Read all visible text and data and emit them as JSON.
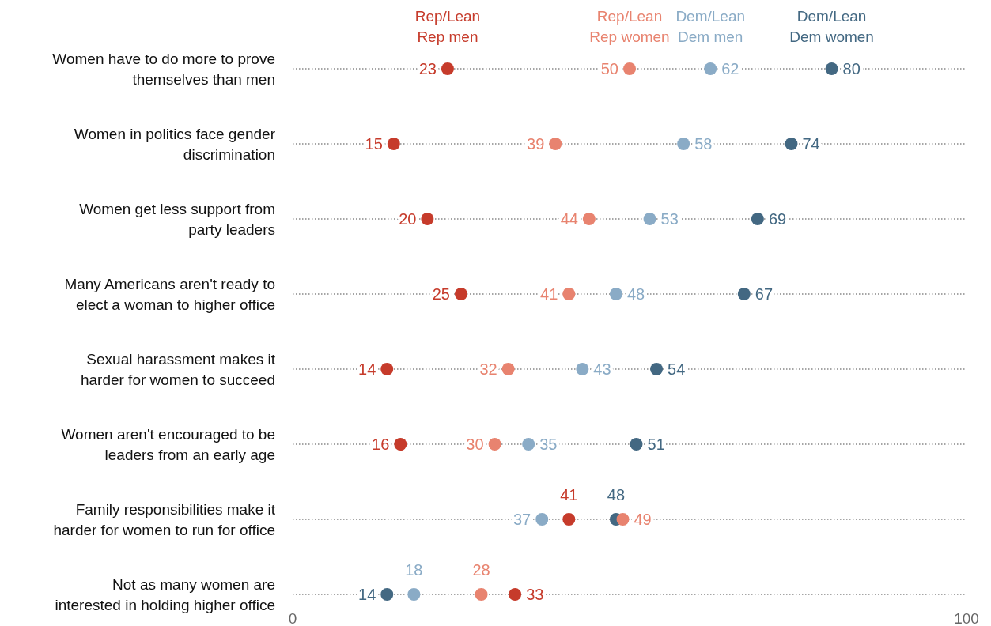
{
  "chart_data": {
    "type": "scatter",
    "orientation": "horizontal",
    "categories": [
      "Women have to do more to prove themselves than men",
      "Women in politics face gender discrimination",
      "Women get less support from party leaders",
      "Many Americans aren't ready to elect a woman to higher office",
      "Sexual harassment makes it harder for women to succeed",
      "Women aren't encouraged to be leaders from an early age",
      "Family responsibilities make it harder for women to run for office",
      "Not as many women are interested in holding higher office"
    ],
    "series": [
      {
        "name": "Rep/Lean Rep men",
        "color": "#c63b2b",
        "values": [
          23,
          15,
          20,
          25,
          14,
          16,
          41,
          33
        ]
      },
      {
        "name": "Rep/Lean Rep women",
        "color": "#e8836f",
        "values": [
          50,
          39,
          44,
          41,
          32,
          30,
          49,
          28
        ]
      },
      {
        "name": "Dem/Lean Dem men",
        "color": "#8aabc6",
        "values": [
          62,
          58,
          53,
          48,
          43,
          35,
          37,
          18
        ]
      },
      {
        "name": "Dem/Lean Dem women",
        "color": "#436882",
        "values": [
          80,
          74,
          69,
          67,
          54,
          51,
          48,
          14
        ]
      }
    ],
    "xlim": [
      0,
      100
    ],
    "xticks": [
      0,
      100
    ],
    "data_labels": true,
    "legend": "top",
    "grid": "y",
    "marker": "circle"
  }
}
